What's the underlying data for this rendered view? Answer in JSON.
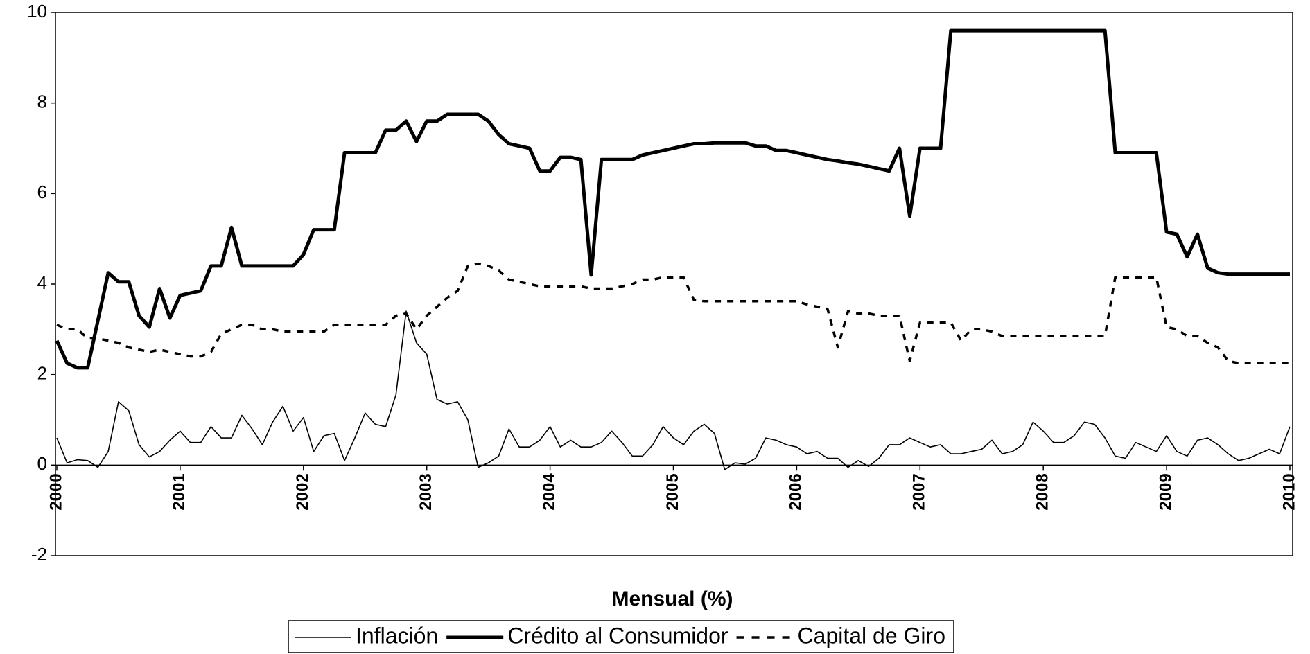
{
  "chart_data": {
    "type": "line",
    "x_label": "Mensual (%)",
    "categories": [
      "2000",
      null,
      null,
      null,
      null,
      null,
      null,
      null,
      null,
      null,
      null,
      null,
      "2001",
      null,
      null,
      null,
      null,
      null,
      null,
      null,
      null,
      null,
      null,
      null,
      "2002",
      null,
      null,
      null,
      null,
      null,
      null,
      null,
      null,
      null,
      null,
      null,
      "2003",
      null,
      null,
      null,
      null,
      null,
      null,
      null,
      null,
      null,
      null,
      null,
      "2004",
      null,
      null,
      null,
      null,
      null,
      null,
      null,
      null,
      null,
      null,
      null,
      "2005",
      null,
      null,
      null,
      null,
      null,
      null,
      null,
      null,
      null,
      null,
      null,
      "2006",
      null,
      null,
      null,
      null,
      null,
      null,
      null,
      null,
      null,
      null,
      null,
      "2007",
      null,
      null,
      null,
      null,
      null,
      null,
      null,
      null,
      null,
      null,
      null,
      "2008",
      null,
      null,
      null,
      null,
      null,
      null,
      null,
      null,
      null,
      null,
      null,
      "2009",
      null,
      null,
      null,
      null,
      null,
      null,
      null,
      null,
      null,
      null,
      null,
      "2010"
    ],
    "series": [
      {
        "name": "Inflación",
        "color": "#000000",
        "style": "thin",
        "values": [
          0.6,
          0.05,
          0.12,
          0.1,
          -0.05,
          0.3,
          1.4,
          1.2,
          0.45,
          0.18,
          0.3,
          0.55,
          0.75,
          0.5,
          0.5,
          0.85,
          0.6,
          0.6,
          1.1,
          0.8,
          0.45,
          0.95,
          1.3,
          0.75,
          1.05,
          0.3,
          0.65,
          0.7,
          0.1,
          0.6,
          1.15,
          0.9,
          0.85,
          1.55,
          3.4,
          2.7,
          2.45,
          1.45,
          1.35,
          1.4,
          1.0,
          -0.05,
          0.05,
          0.2,
          0.8,
          0.4,
          0.4,
          0.55,
          0.85,
          0.4,
          0.55,
          0.4,
          0.4,
          0.5,
          0.75,
          0.5,
          0.2,
          0.2,
          0.45,
          0.85,
          0.6,
          0.45,
          0.75,
          0.9,
          0.7,
          -0.1,
          0.05,
          0.02,
          0.15,
          0.6,
          0.55,
          0.45,
          0.4,
          0.25,
          0.3,
          0.15,
          0.15,
          -0.05,
          0.1,
          -0.03,
          0.15,
          0.45,
          0.45,
          0.6,
          0.5,
          0.4,
          0.45,
          0.25,
          0.25,
          0.3,
          0.35,
          0.55,
          0.25,
          0.3,
          0.45,
          0.95,
          0.75,
          0.5,
          0.5,
          0.65,
          0.95,
          0.9,
          0.6,
          0.2,
          0.15,
          0.5,
          0.4,
          0.3,
          0.65,
          0.3,
          0.2,
          0.55,
          0.6,
          0.45,
          0.25,
          0.1,
          0.15,
          0.25,
          0.35,
          0.25,
          0.85
        ]
      },
      {
        "name": "Crédito al Consumidor",
        "color": "#000000",
        "style": "thick",
        "values": [
          2.75,
          2.25,
          2.15,
          2.15,
          3.2,
          4.25,
          4.05,
          4.05,
          3.3,
          3.05,
          3.9,
          3.25,
          3.75,
          3.8,
          3.85,
          4.4,
          4.4,
          5.25,
          4.4,
          4.4,
          4.4,
          4.4,
          4.4,
          4.4,
          4.65,
          5.2,
          5.2,
          5.2,
          6.9,
          6.9,
          6.9,
          6.9,
          7.4,
          7.4,
          7.6,
          7.15,
          7.6,
          7.6,
          7.75,
          7.75,
          7.75,
          7.75,
          7.6,
          7.3,
          7.1,
          7.05,
          7.0,
          6.5,
          6.5,
          6.8,
          6.8,
          6.75,
          4.2,
          6.75,
          6.75,
          6.75,
          6.75,
          6.85,
          6.9,
          6.95,
          7.0,
          7.05,
          7.1,
          7.1,
          7.12,
          7.12,
          7.12,
          7.12,
          7.05,
          7.05,
          6.95,
          6.95,
          6.9,
          6.85,
          6.8,
          6.75,
          6.72,
          6.68,
          6.65,
          6.6,
          6.55,
          6.5,
          7.0,
          5.5,
          7.0,
          7.0,
          7.0,
          9.6,
          9.6,
          9.6,
          9.6,
          9.6,
          9.6,
          9.6,
          9.6,
          9.6,
          9.6,
          9.6,
          9.6,
          9.6,
          9.6,
          9.6,
          9.6,
          6.9,
          6.9,
          6.9,
          6.9,
          6.9,
          5.15,
          5.1,
          4.6,
          5.1,
          4.35,
          4.25,
          4.22,
          4.22,
          4.22,
          4.22,
          4.22,
          4.22,
          4.22
        ]
      },
      {
        "name": "Capital de Giro",
        "color": "#000000",
        "style": "dashed",
        "values": [
          3.1,
          3.0,
          3.0,
          2.8,
          2.8,
          2.75,
          2.7,
          2.6,
          2.55,
          2.5,
          2.55,
          2.5,
          2.45,
          2.4,
          2.4,
          2.5,
          2.9,
          3.0,
          3.1,
          3.1,
          3.0,
          3.0,
          2.95,
          2.95,
          2.95,
          2.95,
          2.95,
          3.1,
          3.1,
          3.1,
          3.1,
          3.1,
          3.1,
          3.3,
          3.35,
          3.0,
          3.3,
          3.5,
          3.7,
          3.85,
          4.4,
          4.45,
          4.4,
          4.3,
          4.1,
          4.05,
          4.0,
          3.95,
          3.95,
          3.95,
          3.95,
          3.95,
          3.9,
          3.9,
          3.9,
          3.95,
          4.0,
          4.1,
          4.1,
          4.15,
          4.15,
          4.15,
          3.65,
          3.62,
          3.62,
          3.62,
          3.62,
          3.62,
          3.62,
          3.62,
          3.62,
          3.62,
          3.62,
          3.55,
          3.5,
          3.45,
          2.6,
          3.4,
          3.35,
          3.35,
          3.3,
          3.3,
          3.3,
          2.3,
          3.15,
          3.15,
          3.15,
          3.15,
          2.75,
          3.0,
          3.0,
          2.95,
          2.85,
          2.85,
          2.85,
          2.85,
          2.85,
          2.85,
          2.85,
          2.85,
          2.85,
          2.85,
          2.85,
          4.15,
          4.15,
          4.15,
          4.15,
          4.15,
          3.05,
          3.0,
          2.85,
          2.85,
          2.7,
          2.6,
          2.3,
          2.25,
          2.25,
          2.25,
          2.25,
          2.25,
          2.25
        ]
      }
    ],
    "ylim": [
      -2,
      10
    ],
    "yticks": [
      -2,
      0,
      2,
      4,
      6,
      8,
      10
    ],
    "grid": false,
    "legend": "bottom"
  }
}
